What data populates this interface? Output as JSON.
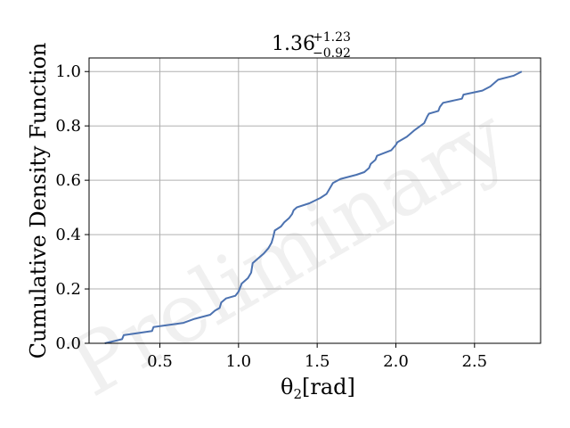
{
  "chart_data": {
    "type": "line",
    "title": {
      "value": "1.36",
      "upper": "+1.23",
      "lower": "−0.92"
    },
    "xlabel": {
      "symbol": "θ",
      "subscript": "2",
      "unit": "[rad]"
    },
    "ylabel": "Cumulative Density Function",
    "watermark": "Preliminary",
    "xlim": [
      0.05,
      2.92
    ],
    "ylim": [
      0.0,
      1.05
    ],
    "xticks": [
      0.5,
      1.0,
      1.5,
      2.0,
      2.5
    ],
    "xtick_labels": [
      "0.5",
      "1.0",
      "1.5",
      "2.0",
      "2.5"
    ],
    "yticks": [
      0.0,
      0.2,
      0.4,
      0.6,
      0.8,
      1.0
    ],
    "ytick_labels": [
      "0.0",
      "0.2",
      "0.4",
      "0.6",
      "0.8",
      "1.0"
    ],
    "grid": true,
    "line_color": "#4c72b0",
    "series": [
      {
        "x": [
          0.15,
          0.26,
          0.27,
          0.45,
          0.46,
          0.65,
          0.72,
          0.82,
          0.85,
          0.88,
          0.89,
          0.92,
          0.98,
          1.0,
          1.02,
          1.06,
          1.08,
          1.09,
          1.12,
          1.16,
          1.19,
          1.21,
          1.22,
          1.23,
          1.27,
          1.29,
          1.32,
          1.34,
          1.35,
          1.37,
          1.45,
          1.52,
          1.56,
          1.58,
          1.6,
          1.65,
          1.75,
          1.8,
          1.83,
          1.84,
          1.87,
          1.88,
          1.97,
          2.0,
          2.01,
          2.07,
          2.12,
          2.18,
          2.2,
          2.21,
          2.27,
          2.28,
          2.3,
          2.42,
          2.43,
          2.55,
          2.6,
          2.65,
          2.75,
          2.8
        ],
        "y": [
          0.0,
          0.015,
          0.03,
          0.045,
          0.06,
          0.075,
          0.09,
          0.105,
          0.12,
          0.13,
          0.15,
          0.165,
          0.175,
          0.19,
          0.22,
          0.24,
          0.26,
          0.295,
          0.31,
          0.33,
          0.35,
          0.37,
          0.39,
          0.415,
          0.43,
          0.445,
          0.46,
          0.475,
          0.49,
          0.5,
          0.515,
          0.535,
          0.55,
          0.57,
          0.59,
          0.605,
          0.62,
          0.63,
          0.645,
          0.66,
          0.675,
          0.69,
          0.71,
          0.73,
          0.74,
          0.76,
          0.785,
          0.81,
          0.835,
          0.845,
          0.855,
          0.87,
          0.885,
          0.9,
          0.915,
          0.93,
          0.945,
          0.97,
          0.985,
          1.0
        ]
      }
    ]
  }
}
